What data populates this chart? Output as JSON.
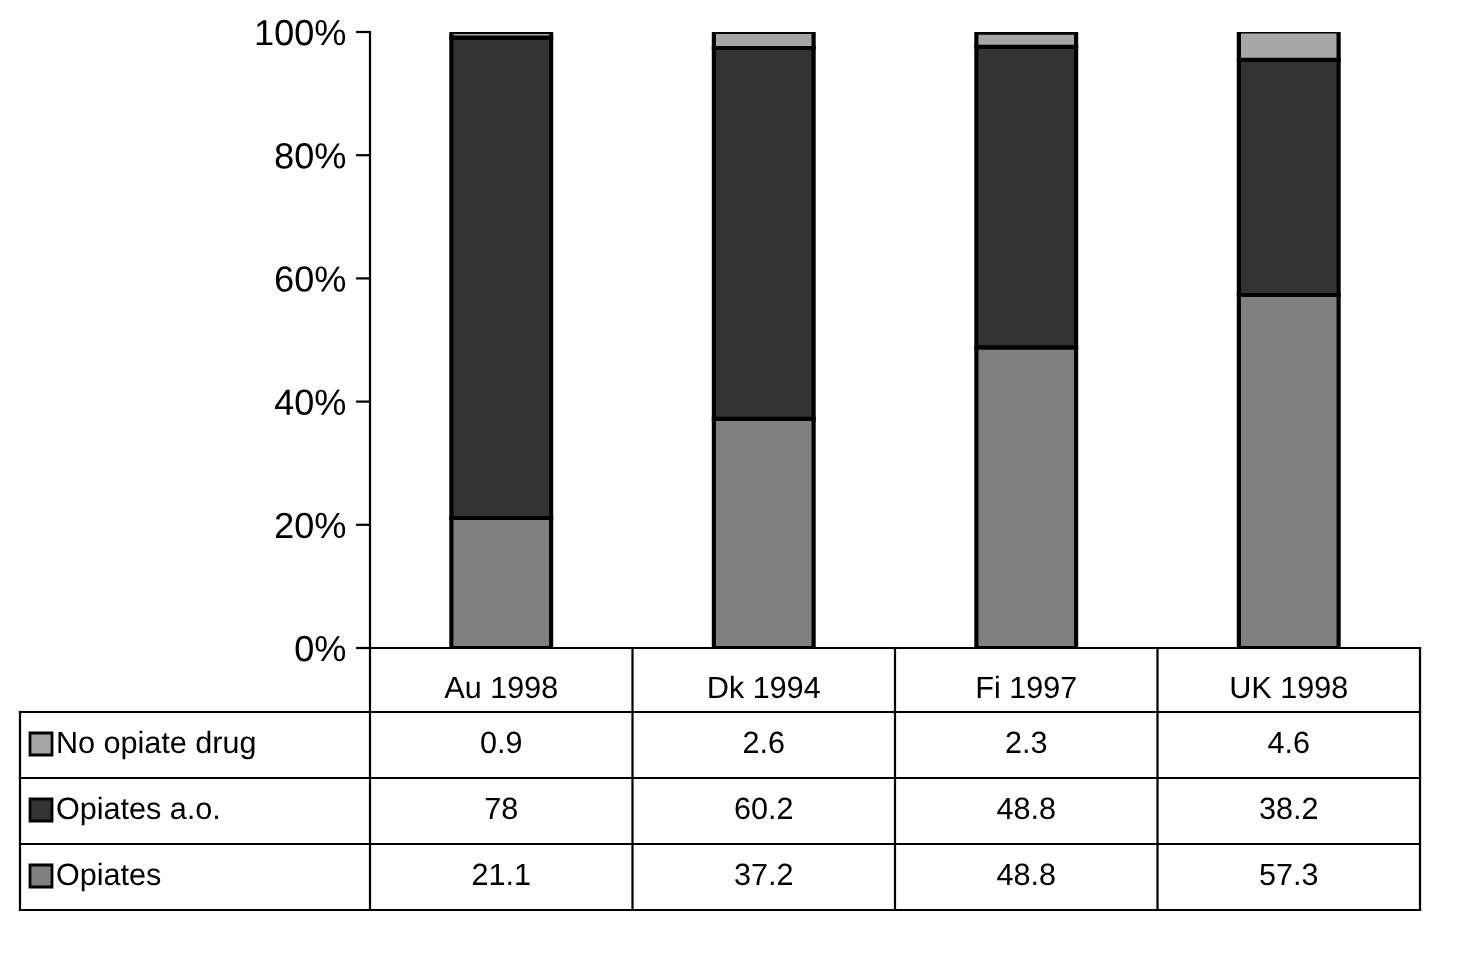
{
  "chart_data": {
    "type": "bar",
    "stacked": true,
    "categories": [
      "Au 1998",
      "Dk 1994",
      "Fi 1997",
      "UK 1998"
    ],
    "series": [
      {
        "name": "Opiates",
        "color": "#808080",
        "values": [
          21.1,
          37.2,
          48.8,
          57.3
        ]
      },
      {
        "name": "Opiates a.o.",
        "color": "#333333",
        "values": [
          78,
          60.2,
          48.8,
          38.2
        ]
      },
      {
        "name": "No opiate drug",
        "color": "#a6a6a6",
        "values": [
          0.9,
          2.6,
          2.3,
          4.6
        ]
      }
    ],
    "ylim": [
      0,
      100
    ],
    "yticks": [
      {
        "value": 0,
        "label": "0%"
      },
      {
        "value": 20,
        "label": "20%"
      },
      {
        "value": 40,
        "label": "40%"
      },
      {
        "value": 60,
        "label": "60%"
      },
      {
        "value": 80,
        "label": "80%"
      },
      {
        "value": 100,
        "label": "100%"
      }
    ],
    "data_labels": true,
    "legend": "bottom left",
    "grid": false
  }
}
